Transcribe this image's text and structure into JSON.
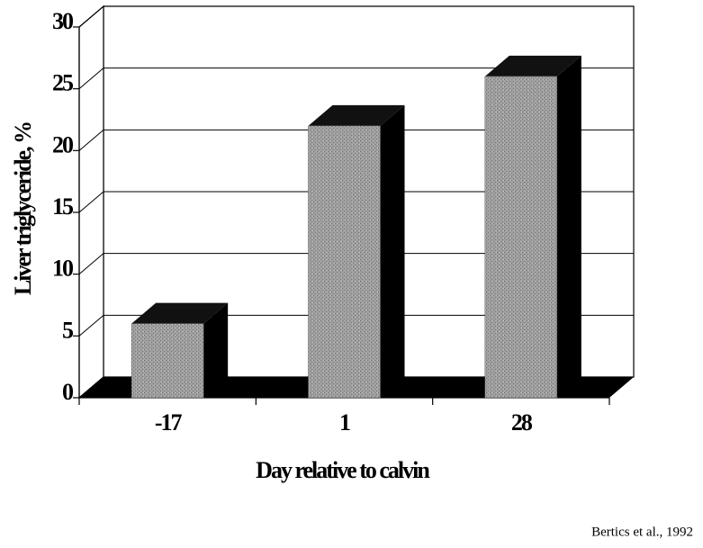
{
  "chart_data": {
    "type": "bar3d",
    "categories": [
      "-17",
      "1",
      "28"
    ],
    "values": [
      6,
      22,
      26
    ],
    "color": "#9a9a9a",
    "ylim": [
      0,
      30
    ],
    "yticks": [
      0,
      5,
      10,
      15,
      20,
      25,
      30
    ],
    "grid": true,
    "xlabel": "Day relative to calvin",
    "ylabel": "Liver triglyceride, %",
    "source": "Bertics et al., 1992"
  }
}
